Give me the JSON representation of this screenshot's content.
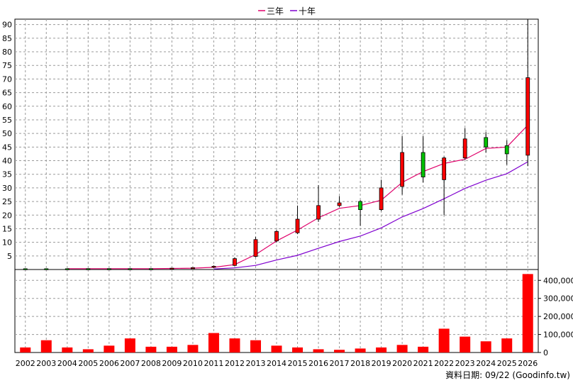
{
  "chart_data": {
    "type": "candlestick",
    "legend": [
      {
        "name": "三年",
        "color": "#e0006a"
      },
      {
        "name": "十年",
        "color": "#7f00cf"
      }
    ],
    "footer": "資料日期: 09/22 (Goodinfo.tw)",
    "categories": [
      "2002",
      "2003",
      "2004",
      "2005",
      "2006",
      "2007",
      "2008",
      "2009",
      "2010",
      "2011",
      "2012",
      "2013",
      "2014",
      "2015",
      "2016",
      "2017",
      "2018",
      "2019",
      "2020",
      "2021",
      "2022",
      "2023",
      "2024",
      "2025",
      "2026"
    ],
    "price_axis": {
      "ylim": [
        0,
        92
      ],
      "ticks": [
        5,
        10,
        15,
        20,
        25,
        30,
        35,
        40,
        45,
        50,
        55,
        60,
        65,
        70,
        75,
        80,
        85,
        90
      ]
    },
    "volume_axis": {
      "ylim": [
        0,
        460000
      ],
      "ticks": [
        0,
        100000,
        200000,
        300000,
        400000
      ],
      "tick_labels": [
        "0",
        "100,000",
        "200,000",
        "300,000",
        "400,000"
      ]
    },
    "ohlc": [
      {
        "o": 0.3,
        "h": 0.4,
        "l": 0.2,
        "c": 0.3,
        "up": false
      },
      {
        "o": 0.3,
        "h": 0.4,
        "l": 0.2,
        "c": 0.3,
        "up": false
      },
      {
        "o": 0.3,
        "h": 0.4,
        "l": 0.2,
        "c": 0.3,
        "up": false
      },
      {
        "o": 0.3,
        "h": 0.4,
        "l": 0.2,
        "c": 0.3,
        "up": false
      },
      {
        "o": 0.3,
        "h": 0.4,
        "l": 0.2,
        "c": 0.3,
        "up": false
      },
      {
        "o": 0.3,
        "h": 0.4,
        "l": 0.2,
        "c": 0.3,
        "up": false
      },
      {
        "o": 0.3,
        "h": 0.4,
        "l": 0.2,
        "c": 0.3,
        "up": false
      },
      {
        "o": 0.4,
        "h": 0.5,
        "l": 0.3,
        "c": 0.5,
        "up": true
      },
      {
        "o": 0.6,
        "h": 0.8,
        "l": 0.5,
        "c": 0.7,
        "up": true
      },
      {
        "o": 0.8,
        "h": 1.5,
        "l": 0.5,
        "c": 1.2,
        "up": true
      },
      {
        "o": 1.5,
        "h": 4.5,
        "l": 1.3,
        "c": 4.0,
        "up": true
      },
      {
        "o": 4.8,
        "h": 12.0,
        "l": 4.5,
        "c": 11.0,
        "up": true
      },
      {
        "o": 10.5,
        "h": 14.5,
        "l": 10.0,
        "c": 14.0,
        "up": true
      },
      {
        "o": 13.5,
        "h": 23.5,
        "l": 13.0,
        "c": 18.5,
        "up": true
      },
      {
        "o": 18.5,
        "h": 31.0,
        "l": 17.5,
        "c": 23.5,
        "up": true
      },
      {
        "o": 23.5,
        "h": 27.0,
        "l": 23.0,
        "c": 24.5,
        "up": true
      },
      {
        "o": 25.0,
        "h": 25.5,
        "l": 16.0,
        "c": 22.0,
        "up": false
      },
      {
        "o": 22.0,
        "h": 33.0,
        "l": 21.5,
        "c": 30.0,
        "up": true
      },
      {
        "o": 30.5,
        "h": 49.0,
        "l": 27.5,
        "c": 43.0,
        "up": true
      },
      {
        "o": 43.0,
        "h": 49.0,
        "l": 32.0,
        "c": 34.0,
        "up": false
      },
      {
        "o": 33.0,
        "h": 41.5,
        "l": 20.0,
        "c": 41.0,
        "up": true
      },
      {
        "o": 41.0,
        "h": 52.0,
        "l": 40.5,
        "c": 48.0,
        "up": true
      },
      {
        "o": 48.5,
        "h": 50.5,
        "l": 43.0,
        "c": 45.0,
        "up": false
      },
      {
        "o": 45.5,
        "h": 47.5,
        "l": 38.5,
        "c": 42.5,
        "up": false
      },
      {
        "o": 42.0,
        "h": 92.0,
        "l": 38.0,
        "c": 70.5,
        "up": true
      }
    ],
    "ma3": [
      null,
      null,
      0.3,
      0.3,
      0.3,
      0.3,
      0.3,
      0.4,
      0.5,
      0.8,
      1.8,
      5.5,
      10.5,
      14.5,
      19.0,
      22.5,
      23.5,
      25.5,
      32.0,
      36.0,
      39.0,
      40.5,
      44.5,
      45.0,
      53.0
    ],
    "ma10": [
      null,
      null,
      null,
      null,
      null,
      null,
      null,
      null,
      null,
      0.2,
      0.6,
      1.5,
      3.5,
      5.2,
      7.8,
      10.3,
      12.3,
      15.3,
      19.3,
      22.4,
      26.0,
      29.8,
      32.8,
      35.2,
      39.6
    ],
    "volume": [
      28000,
      68000,
      28000,
      18000,
      38000,
      78000,
      32000,
      32000,
      42000,
      108000,
      78000,
      68000,
      38000,
      28000,
      18000,
      15000,
      22000,
      28000,
      42000,
      32000,
      132000,
      88000,
      62000,
      78000,
      435000
    ]
  }
}
